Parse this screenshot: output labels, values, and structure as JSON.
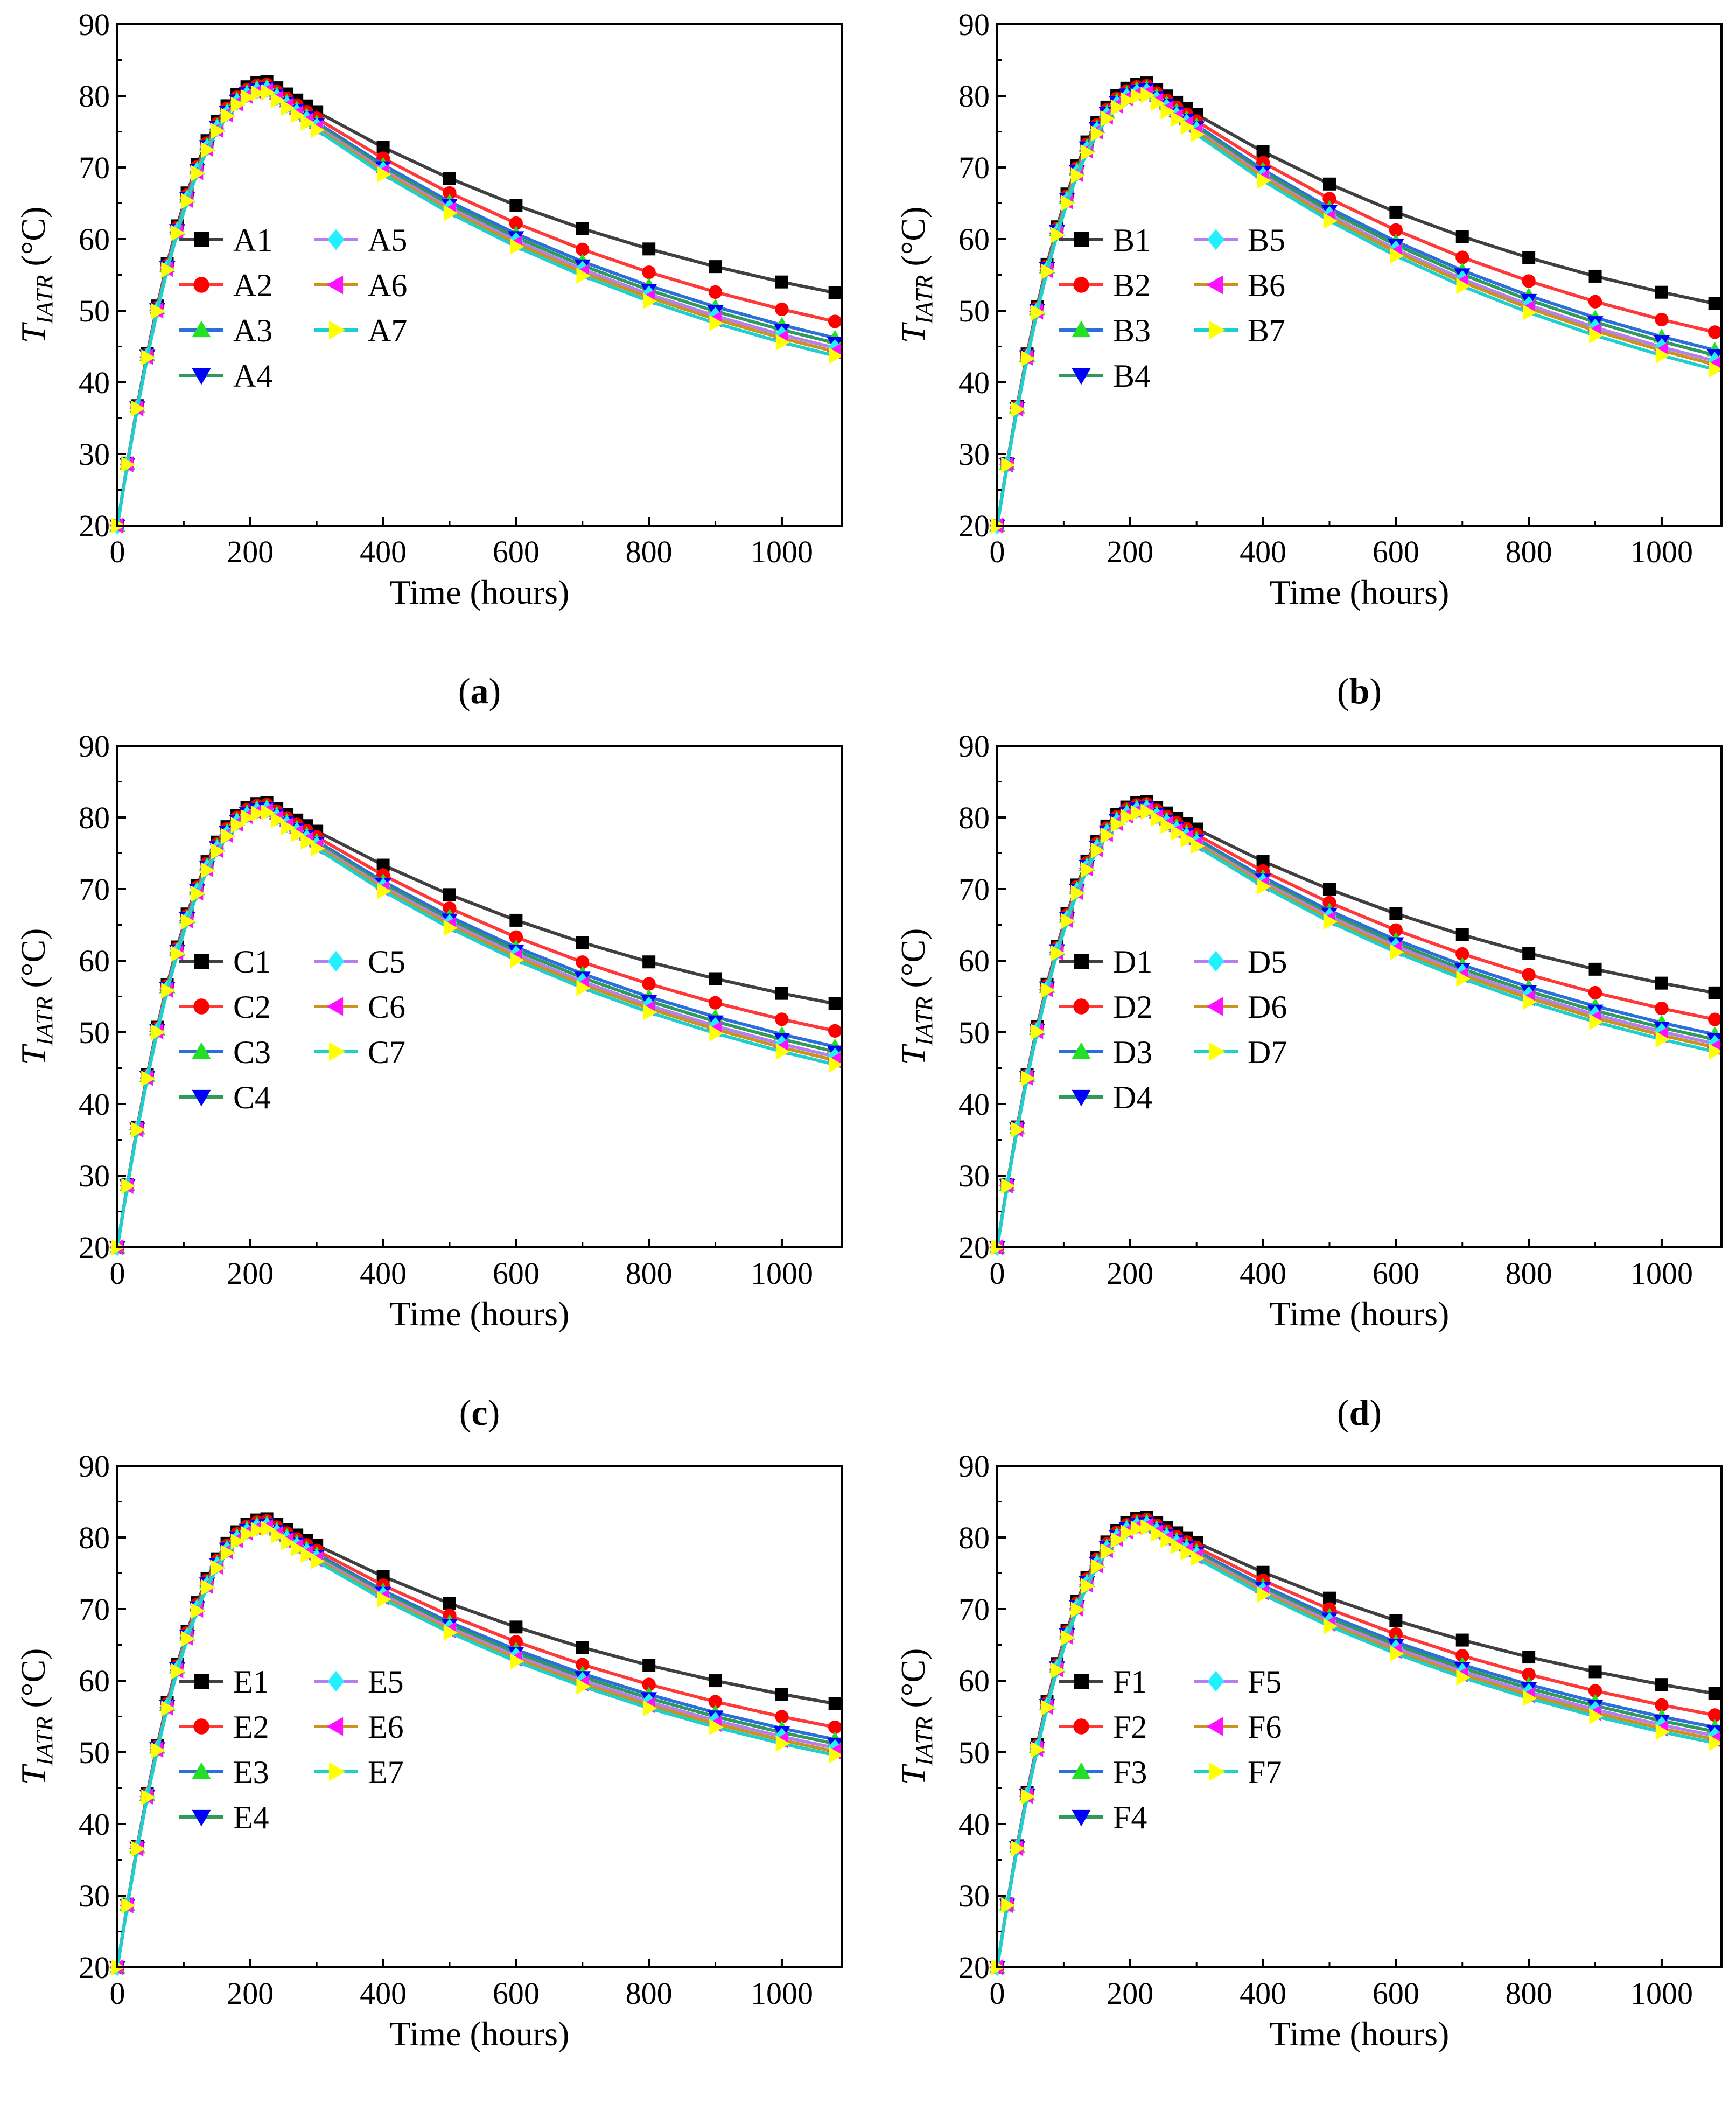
{
  "chart_data": [
    {
      "type": "line",
      "panel_label": "a",
      "xlabel": "Time (hours)",
      "ylabel_main": "T",
      "ylabel_sub": "IATR",
      "ylabel_unit": " (°C)",
      "xlim": [
        0,
        1090
      ],
      "ylim": [
        20,
        90
      ],
      "xticks": [
        0,
        200,
        400,
        600,
        800,
        1000
      ],
      "yticks": [
        20,
        30,
        40,
        50,
        60,
        70,
        80,
        90
      ],
      "peak_time": 225,
      "series": [
        {
          "name": "A1",
          "peak": 82.0,
          "end": 52.5
        },
        {
          "name": "A2",
          "peak": 81.6,
          "end": 48.5
        },
        {
          "name": "A3",
          "peak": 81.3,
          "end": 46.2
        },
        {
          "name": "A4",
          "peak": 81.1,
          "end": 45.5
        },
        {
          "name": "A5",
          "peak": 80.9,
          "end": 44.8
        },
        {
          "name": "A6",
          "peak": 80.7,
          "end": 44.3
        },
        {
          "name": "A7",
          "peak": 80.5,
          "end": 43.7
        }
      ]
    },
    {
      "type": "line",
      "panel_label": "b",
      "xlabel": "Time (hours)",
      "ylabel_main": "T",
      "ylabel_sub": "IATR",
      "ylabel_unit": " (°C)",
      "xlim": [
        0,
        1090
      ],
      "ylim": [
        20,
        90
      ],
      "xticks": [
        0,
        200,
        400,
        600,
        800,
        1000
      ],
      "yticks": [
        20,
        30,
        40,
        50,
        60,
        70,
        80,
        90
      ],
      "peak_time": 225,
      "series": [
        {
          "name": "B1",
          "peak": 81.8,
          "end": 51.0
        },
        {
          "name": "B2",
          "peak": 81.4,
          "end": 47.0
        },
        {
          "name": "B3",
          "peak": 81.1,
          "end": 44.5
        },
        {
          "name": "B4",
          "peak": 80.9,
          "end": 43.8
        },
        {
          "name": "B5",
          "peak": 80.6,
          "end": 43.0
        },
        {
          "name": "B6",
          "peak": 80.4,
          "end": 42.5
        },
        {
          "name": "B7",
          "peak": 80.1,
          "end": 41.8
        }
      ]
    },
    {
      "type": "line",
      "panel_label": "c",
      "xlabel": "Time (hours)",
      "ylabel_main": "T",
      "ylabel_sub": "IATR",
      "ylabel_unit": " (°C)",
      "xlim": [
        0,
        1090
      ],
      "ylim": [
        20,
        90
      ],
      "xticks": [
        0,
        200,
        400,
        600,
        800,
        1000
      ],
      "yticks": [
        20,
        30,
        40,
        50,
        60,
        70,
        80,
        90
      ],
      "peak_time": 225,
      "series": [
        {
          "name": "C1",
          "peak": 82.1,
          "end": 54.0
        },
        {
          "name": "C2",
          "peak": 81.8,
          "end": 50.2
        },
        {
          "name": "C3",
          "peak": 81.5,
          "end": 48.0
        },
        {
          "name": "C4",
          "peak": 81.3,
          "end": 47.3
        },
        {
          "name": "C5",
          "peak": 81.1,
          "end": 46.6
        },
        {
          "name": "C6",
          "peak": 80.9,
          "end": 46.1
        },
        {
          "name": "C7",
          "peak": 80.7,
          "end": 45.5
        }
      ]
    },
    {
      "type": "line",
      "panel_label": "d",
      "xlabel": "Time (hours)",
      "ylabel_main": "T",
      "ylabel_sub": "IATR",
      "ylabel_unit": " (°C)",
      "xlim": [
        0,
        1090
      ],
      "ylim": [
        20,
        90
      ],
      "xticks": [
        0,
        200,
        400,
        600,
        800,
        1000
      ],
      "yticks": [
        20,
        30,
        40,
        50,
        60,
        70,
        80,
        90
      ],
      "peak_time": 225,
      "series": [
        {
          "name": "D1",
          "peak": 82.2,
          "end": 55.5
        },
        {
          "name": "D2",
          "peak": 81.9,
          "end": 51.8
        },
        {
          "name": "D3",
          "peak": 81.6,
          "end": 49.7
        },
        {
          "name": "D4",
          "peak": 81.4,
          "end": 49.0
        },
        {
          "name": "D5",
          "peak": 81.2,
          "end": 48.4
        },
        {
          "name": "D6",
          "peak": 81.0,
          "end": 47.9
        },
        {
          "name": "D7",
          "peak": 80.8,
          "end": 47.3
        }
      ]
    },
    {
      "type": "line",
      "panel_label": "e",
      "xlabel": "Time (hours)",
      "ylabel_main": "T",
      "ylabel_sub": "IATR",
      "ylabel_unit": " (°C)",
      "xlim": [
        0,
        1090
      ],
      "ylim": [
        20,
        90
      ],
      "xticks": [
        0,
        200,
        400,
        600,
        800,
        1000
      ],
      "yticks": [
        20,
        30,
        40,
        50,
        60,
        70,
        80,
        90
      ],
      "peak_time": 225,
      "series": [
        {
          "name": "E1",
          "peak": 82.6,
          "end": 56.8
        },
        {
          "name": "E2",
          "peak": 82.3,
          "end": 53.5
        },
        {
          "name": "E3",
          "peak": 82.0,
          "end": 51.8
        },
        {
          "name": "E4",
          "peak": 81.8,
          "end": 51.2
        },
        {
          "name": "E5",
          "peak": 81.6,
          "end": 50.6
        },
        {
          "name": "E6",
          "peak": 81.4,
          "end": 50.1
        },
        {
          "name": "E7",
          "peak": 81.2,
          "end": 49.6
        }
      ]
    },
    {
      "type": "line",
      "panel_label": "f",
      "xlabel": "Time (hours)",
      "ylabel_main": "T",
      "ylabel_sub": "IATR",
      "ylabel_unit": " (°C)",
      "xlim": [
        0,
        1090
      ],
      "ylim": [
        20,
        90
      ],
      "xticks": [
        0,
        200,
        400,
        600,
        800,
        1000
      ],
      "yticks": [
        20,
        30,
        40,
        50,
        60,
        70,
        80,
        90
      ],
      "peak_time": 225,
      "series": [
        {
          "name": "F1",
          "peak": 82.8,
          "end": 58.2
        },
        {
          "name": "F2",
          "peak": 82.5,
          "end": 55.2
        },
        {
          "name": "F3",
          "peak": 82.2,
          "end": 53.5
        },
        {
          "name": "F4",
          "peak": 82.0,
          "end": 52.9
        },
        {
          "name": "F5",
          "peak": 81.8,
          "end": 52.3
        },
        {
          "name": "F6",
          "peak": 81.6,
          "end": 51.8
        },
        {
          "name": "F7",
          "peak": 81.4,
          "end": 51.3
        }
      ]
    }
  ],
  "series_styles": [
    {
      "line_color": "#404040",
      "marker_color": "#000000",
      "marker": "square"
    },
    {
      "line_color": "#ff3838",
      "marker_color": "#ff0000",
      "marker": "circle"
    },
    {
      "line_color": "#2a6fdb",
      "marker_color": "#22e022",
      "marker": "triangle-up"
    },
    {
      "line_color": "#2f9a5c",
      "marker_color": "#0000ff",
      "marker": "triangle-down"
    },
    {
      "line_color": "#b77ef0",
      "marker_color": "#22f0ff",
      "marker": "diamond"
    },
    {
      "line_color": "#c8941c",
      "marker_color": "#ff10ff",
      "marker": "triangle-left"
    },
    {
      "line_color": "#1ecfd0",
      "marker_color": "#ffff00",
      "marker": "triangle-right"
    }
  ],
  "time_points": [
    0,
    15,
    30,
    45,
    60,
    75,
    90,
    105,
    120,
    135,
    150,
    165,
    180,
    195,
    210,
    225,
    240,
    255,
    270,
    285,
    300,
    400,
    500,
    600,
    700,
    800,
    900,
    1000,
    1080
  ]
}
